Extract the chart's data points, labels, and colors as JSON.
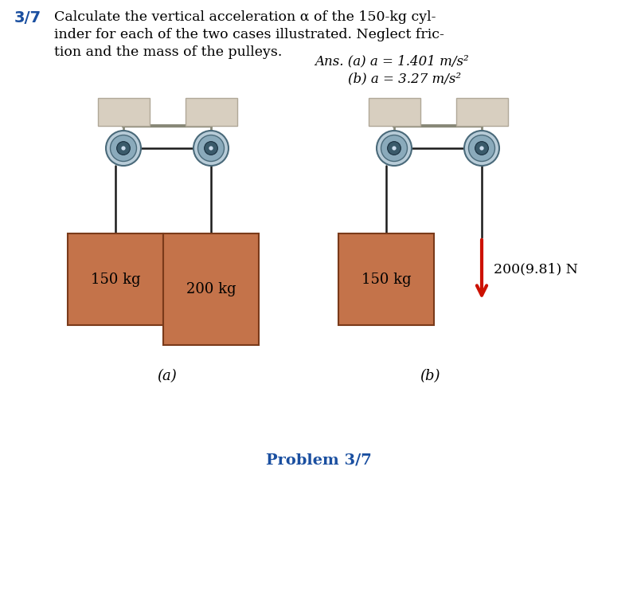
{
  "bg_color": "#ffffff",
  "block_color": "#c4734a",
  "block_edge_color": "#7a3a1a",
  "ceiling_color": "#d8cfc0",
  "ceiling_edge": "#b0a898",
  "bar_color": "#888878",
  "pulley_rim_color": "#b8ccd8",
  "pulley_mid_color": "#8aaabb",
  "pulley_hub_color": "#3a5a6a",
  "pulley_center_color": "#ccddee",
  "pulley_edge_color": "#4a6a7a",
  "rope_color": "#1a1a1a",
  "arrow_color": "#cc1100",
  "text_blue": "#1a4fa0",
  "text_black": "#111111",
  "italic_a_text": "a",
  "problem_num_color": "#1a4fa0",
  "diagram_a_label": "(a)",
  "diagram_b_label": "(b)",
  "problem_label": "Problem 3/7",
  "mass_150": "150 kg",
  "mass_200": "200 kg",
  "force_label": "200(9.81) N",
  "ans1": "Ans. (a) a = 1.401 m/s²",
  "ans2": "        (b) a = 3.27 m/s²"
}
